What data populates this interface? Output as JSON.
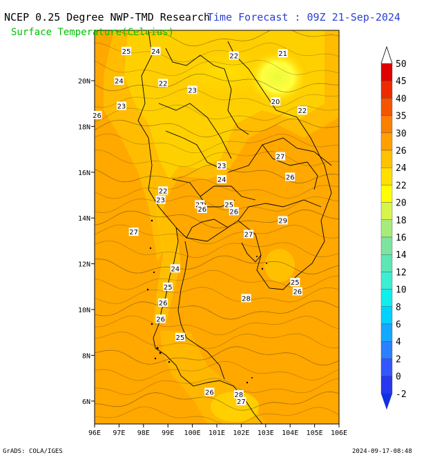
{
  "header": {
    "left_title": "NCEP 0.25 Degree NWP-TMD Research",
    "right_title": "Time Forecast : 09Z 21-Sep-2024",
    "subtitle": "Surface Temperature(Celcius)"
  },
  "footer": {
    "left": "GrADS: COLA/IGES",
    "right": "2024-09-17-08:48"
  },
  "map": {
    "lon_ticks": [
      "96E",
      "97E",
      "98E",
      "99E",
      "100E",
      "101E",
      "102E",
      "103E",
      "104E",
      "105E",
      "106E"
    ],
    "lat_ticks": [
      {
        "label": "20N",
        "lat": 20
      },
      {
        "label": "18N",
        "lat": 18
      },
      {
        "label": "16N",
        "lat": 16
      },
      {
        "label": "14N",
        "lat": 14
      },
      {
        "label": "12N",
        "lat": 12
      },
      {
        "label": "10N",
        "lat": 10
      },
      {
        "label": "8N",
        "lat": 8
      },
      {
        "label": "6N",
        "lat": 6
      }
    ],
    "lon_range": [
      96,
      106
    ],
    "lat_range": [
      5,
      22.2
    ],
    "background_color": "#ffa800",
    "contour_labels": [
      {
        "text": "25",
        "lon": 97.3,
        "lat": 21.3
      },
      {
        "text": "24",
        "lon": 98.5,
        "lat": 21.3
      },
      {
        "text": "22",
        "lon": 101.7,
        "lat": 21.1
      },
      {
        "text": "21",
        "lon": 103.7,
        "lat": 21.2
      },
      {
        "text": "24",
        "lon": 97.0,
        "lat": 20.0
      },
      {
        "text": "22",
        "lon": 98.8,
        "lat": 19.9
      },
      {
        "text": "23",
        "lon": 100.0,
        "lat": 19.6
      },
      {
        "text": "20",
        "lon": 103.4,
        "lat": 19.1
      },
      {
        "text": "22",
        "lon": 104.5,
        "lat": 18.7
      },
      {
        "text": "23",
        "lon": 97.1,
        "lat": 18.9
      },
      {
        "text": "26",
        "lon": 96.1,
        "lat": 18.5
      },
      {
        "text": "27",
        "lon": 103.6,
        "lat": 16.7
      },
      {
        "text": "23",
        "lon": 101.2,
        "lat": 16.3
      },
      {
        "text": "26",
        "lon": 104.0,
        "lat": 15.8
      },
      {
        "text": "24",
        "lon": 101.2,
        "lat": 15.7
      },
      {
        "text": "22",
        "lon": 98.8,
        "lat": 15.2
      },
      {
        "text": "23",
        "lon": 98.7,
        "lat": 14.8
      },
      {
        "text": "27",
        "lon": 100.3,
        "lat": 14.6
      },
      {
        "text": "25",
        "lon": 101.5,
        "lat": 14.6
      },
      {
        "text": "26",
        "lon": 100.4,
        "lat": 14.4
      },
      {
        "text": "26",
        "lon": 101.7,
        "lat": 14.3
      },
      {
        "text": "29",
        "lon": 103.7,
        "lat": 13.9
      },
      {
        "text": "27",
        "lon": 97.6,
        "lat": 13.4
      },
      {
        "text": "27",
        "lon": 102.3,
        "lat": 13.3
      },
      {
        "text": "24",
        "lon": 99.3,
        "lat": 11.8
      },
      {
        "text": "25",
        "lon": 104.2,
        "lat": 11.2
      },
      {
        "text": "25",
        "lon": 99.0,
        "lat": 11.0
      },
      {
        "text": "26",
        "lon": 104.3,
        "lat": 10.8
      },
      {
        "text": "28",
        "lon": 102.2,
        "lat": 10.5
      },
      {
        "text": "26",
        "lon": 98.8,
        "lat": 10.3
      },
      {
        "text": "26",
        "lon": 98.7,
        "lat": 9.6
      },
      {
        "text": "25",
        "lon": 99.5,
        "lat": 8.8
      },
      {
        "text": "26",
        "lon": 100.7,
        "lat": 6.4
      },
      {
        "text": "28",
        "lon": 101.9,
        "lat": 6.3
      },
      {
        "text": "27",
        "lon": 102.0,
        "lat": 6.0
      }
    ]
  },
  "colorbar": {
    "labels": [
      "50",
      "45",
      "40",
      "35",
      "30",
      "26",
      "24",
      "22",
      "20",
      "18",
      "16",
      "14",
      "12",
      "10",
      "8",
      "6",
      "4",
      "2",
      "0",
      "-2"
    ],
    "colors": [
      "#e00000",
      "#ee2a00",
      "#f55500",
      "#fb8000",
      "#ffa000",
      "#ffc200",
      "#ffe000",
      "#ffff00",
      "#d6f54a",
      "#a6eb7c",
      "#7ce49e",
      "#5ee6b6",
      "#3eeed2",
      "#10eeee",
      "#00d2ff",
      "#14a8ff",
      "#2a80ff",
      "#3456ff",
      "#2838f0"
    ]
  }
}
